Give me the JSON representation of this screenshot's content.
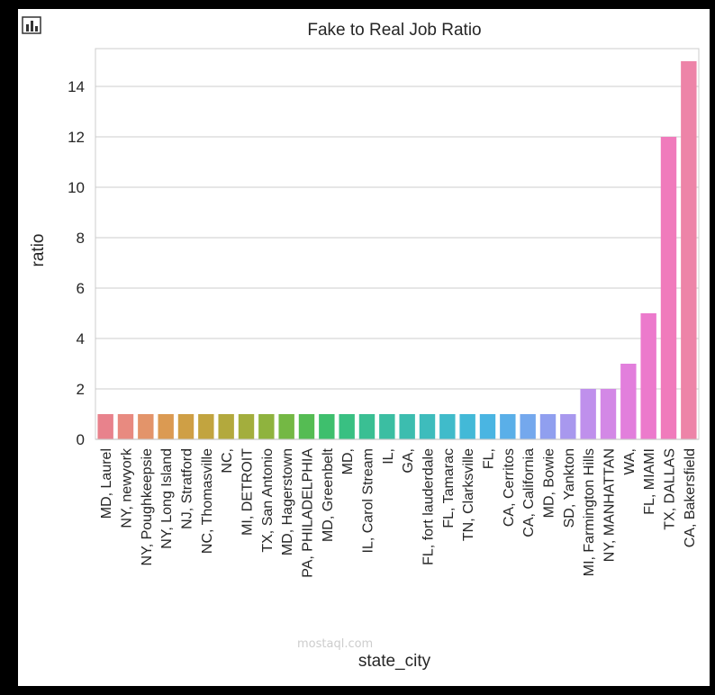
{
  "toolbar": {
    "icon": "bar-chart-icon"
  },
  "watermark": {
    "text": "mostaql.com"
  },
  "chart_data": {
    "type": "bar",
    "title": "Fake to Real Job Ratio",
    "xlabel": "state_city",
    "ylabel": "ratio",
    "ylim": [
      0,
      15.5
    ],
    "yticks": [
      0,
      2,
      4,
      6,
      8,
      10,
      12,
      14
    ],
    "grid": true,
    "legend": "none",
    "categories": [
      "MD,  Laurel",
      "NY,  newyork",
      "NY,  Poughkeepsie",
      "NY,  Long Island",
      "NJ,  Stratford",
      "NC,  Thomasville",
      "NC,",
      "MI,  DETROIT",
      "TX,  San Antonio",
      "MD,  Hagerstown",
      "PA,  PHILADELPHIA",
      "MD,  Greenbelt",
      "MD,",
      "IL,  Carol Stream",
      "IL,",
      "GA,",
      "FL,  fort lauderdale",
      "FL,  Tamarac",
      "TN,  Clarksville",
      "FL,",
      "CA,  Cerritos",
      "CA,  California",
      "MD,  Bowie",
      "SD,  Yankton",
      "MI,  Farmington Hills",
      "NY,  MANHATTAN",
      "WA,",
      "FL,  MIAMI",
      "TX,  DALLAS",
      "CA,  Bakersfield"
    ],
    "values": [
      1,
      1,
      1,
      1,
      1,
      1,
      1,
      1,
      1,
      1,
      1,
      1,
      1,
      1,
      1,
      1,
      1,
      1,
      1,
      1,
      1,
      1,
      1,
      1,
      2,
      2,
      3,
      5,
      12,
      15
    ],
    "colors": [
      "#e8828c",
      "#e88a80",
      "#e3946a",
      "#db9a52",
      "#cf9f45",
      "#c2a43f",
      "#b3a93d",
      "#a3ae3d",
      "#8fb33e",
      "#74b844",
      "#55bc53",
      "#3ebf6d",
      "#39c082",
      "#3abf93",
      "#3bbea2",
      "#3cbdaf",
      "#3ebcbc",
      "#40bbca",
      "#43b9d7",
      "#4ab5e2",
      "#5aafe8",
      "#74a8ed",
      "#909fef",
      "#a898ee",
      "#bf90ec",
      "#d388e6",
      "#e27fdc",
      "#ec7acc",
      "#f07bbc",
      "#ed84a8"
    ]
  }
}
